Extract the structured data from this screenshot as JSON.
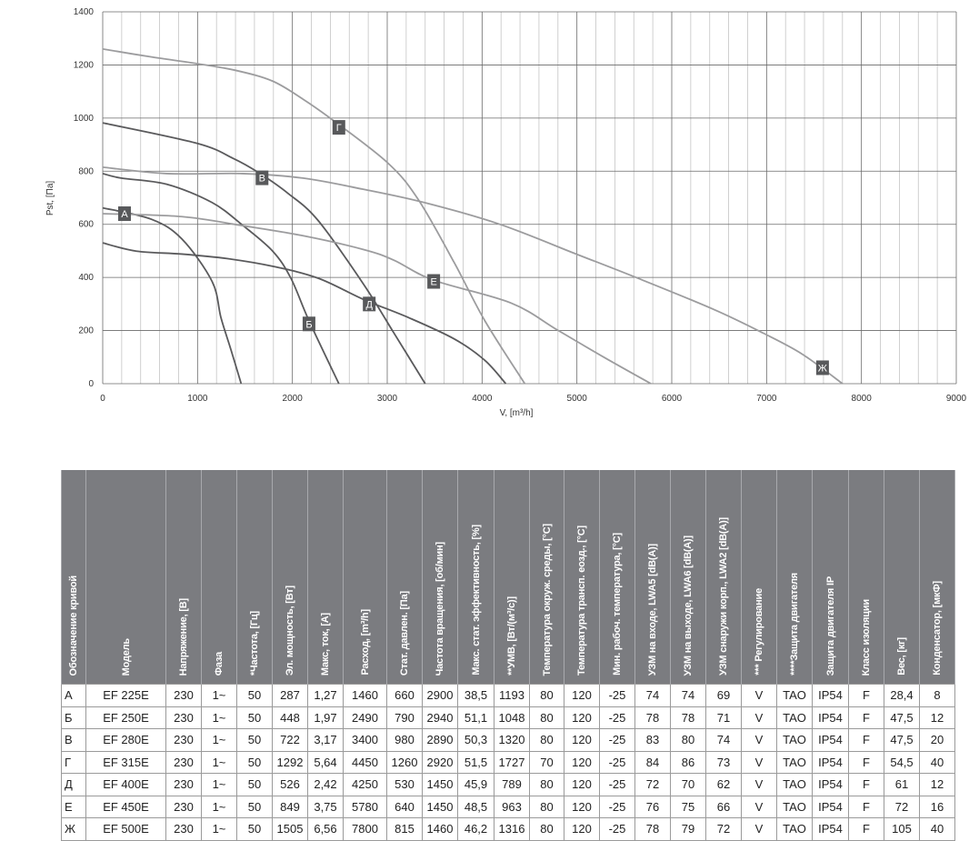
{
  "chart_data": {
    "type": "line",
    "xlabel": "V, [m³/h]",
    "ylabel": "Pst, [Па]",
    "xlim": [
      0,
      9000
    ],
    "ylim": [
      0,
      1400
    ],
    "xticks": [
      0,
      1000,
      2000,
      3000,
      4000,
      5000,
      6000,
      7000,
      8000,
      9000
    ],
    "yticks": [
      0,
      200,
      400,
      600,
      800,
      1000,
      1200,
      1400
    ],
    "grid": true,
    "colors": {
      "dark": "#5a5a5c",
      "light": "#9c9c9e",
      "label_box": "#58595b"
    },
    "series": [
      {
        "name": "А",
        "tone": "dark",
        "label_at": [
          230,
          640
        ],
        "points": [
          [
            0,
            662
          ],
          [
            514,
            619
          ],
          [
            834,
            545
          ],
          [
            1153,
            385
          ],
          [
            1247,
            248
          ],
          [
            1350,
            130
          ],
          [
            1460,
            0
          ]
        ]
      },
      {
        "name": "Б",
        "tone": "dark",
        "label_at": [
          2175,
          225
        ],
        "points": [
          [
            0,
            791
          ],
          [
            195,
            774
          ],
          [
            674,
            751
          ],
          [
            1153,
            682
          ],
          [
            1473,
            597
          ],
          [
            1792,
            499
          ],
          [
            1984,
            397
          ],
          [
            2175,
            237
          ],
          [
            2490,
            0
          ]
        ]
      },
      {
        "name": "В",
        "tone": "dark",
        "label_at": [
          1680,
          775
        ],
        "points": [
          [
            0,
            982
          ],
          [
            994,
            905
          ],
          [
            1377,
            848
          ],
          [
            1633,
            797
          ],
          [
            1952,
            717
          ],
          [
            2272,
            614
          ],
          [
            2751,
            374
          ],
          [
            3070,
            191
          ],
          [
            3400,
            0
          ]
        ]
      },
      {
        "name": "Г",
        "tone": "light",
        "label_at": [
          2490,
          965
        ],
        "points": [
          [
            0,
            1260
          ],
          [
            514,
            1230
          ],
          [
            994,
            1205
          ],
          [
            1409,
            1179
          ],
          [
            1792,
            1139
          ],
          [
            2112,
            1071
          ],
          [
            2431,
            991
          ],
          [
            3006,
            831
          ],
          [
            3326,
            694
          ],
          [
            3709,
            454
          ],
          [
            4029,
            237
          ],
          [
            4450,
            0
          ]
        ]
      },
      {
        "name": "Д",
        "tone": "dark",
        "label_at": [
          2810,
          300
        ],
        "points": [
          [
            0,
            530
          ],
          [
            355,
            499
          ],
          [
            834,
            488
          ],
          [
            1311,
            471
          ],
          [
            1792,
            442
          ],
          [
            2272,
            397
          ],
          [
            2751,
            317
          ],
          [
            3230,
            248
          ],
          [
            3709,
            168
          ],
          [
            4029,
            88
          ],
          [
            4250,
            0
          ]
        ]
      },
      {
        "name": "Е",
        "tone": "light",
        "label_at": [
          3490,
          385
        ],
        "points": [
          [
            0,
            640
          ],
          [
            834,
            629
          ],
          [
            1473,
            595
          ],
          [
            2112,
            557
          ],
          [
            2751,
            505
          ],
          [
            3070,
            465
          ],
          [
            3485,
            390
          ],
          [
            4303,
            304
          ],
          [
            4795,
            202
          ],
          [
            5287,
            99
          ],
          [
            5780,
            0
          ]
        ]
      },
      {
        "name": "Ж",
        "tone": "light",
        "label_at": [
          7590,
          60
        ],
        "points": [
          [
            0,
            815
          ],
          [
            674,
            791
          ],
          [
            1473,
            791
          ],
          [
            2112,
            774
          ],
          [
            2746,
            732
          ],
          [
            3390,
            682
          ],
          [
            4180,
            601
          ],
          [
            5000,
            487
          ],
          [
            5615,
            401
          ],
          [
            6434,
            281
          ],
          [
            6967,
            190
          ],
          [
            7377,
            111
          ],
          [
            7800,
            0
          ]
        ]
      }
    ]
  },
  "table": {
    "headers": [
      "Обозначение кривой",
      "Модель",
      "Напряжение, [В]",
      "Фаза",
      "*Частота, [Гц]",
      "Эл. мощность, [Вт]",
      "Макс, ток, [А]",
      "Расход, [m³/h]",
      "Стат. давлен. [Па]",
      "Частота вращения, [об/мин]",
      "Макс. стат. эффективность, [%]",
      "**УМВ, [Вт/(м³/с)]",
      "Температура окруж. среды, [°C]",
      "Температура трансп. еозд., [°C]",
      "Мин. рабоч. температура, [°C]",
      "УЗМ на входе, LWA5 [dB(A)]",
      "УЗМ на выходе, LWA6 [dB(A)]",
      "УЗМ снаружи корп., LWA2 [dB(A)]",
      "*** Регулирование",
      "****Защита двигателя",
      "Защита двигателя IP",
      "Класс изоляции",
      "Вес, [кг]",
      "Конденсатор, [мкФ]"
    ],
    "rows": [
      [
        "А",
        "EF 225E",
        "230",
        "1~",
        "50",
        "287",
        "1,27",
        "1460",
        "660",
        "2900",
        "38,5",
        "1193",
        "80",
        "120",
        "-25",
        "74",
        "74",
        "69",
        "V",
        "TAO",
        "IP54",
        "F",
        "28,4",
        "8"
      ],
      [
        "Б",
        "EF 250E",
        "230",
        "1~",
        "50",
        "448",
        "1,97",
        "2490",
        "790",
        "2940",
        "51,1",
        "1048",
        "80",
        "120",
        "-25",
        "78",
        "78",
        "71",
        "V",
        "TAO",
        "IP54",
        "F",
        "47,5",
        "12"
      ],
      [
        "В",
        "EF 280E",
        "230",
        "1~",
        "50",
        "722",
        "3,17",
        "3400",
        "980",
        "2890",
        "50,3",
        "1320",
        "80",
        "120",
        "-25",
        "83",
        "80",
        "74",
        "V",
        "TAO",
        "IP54",
        "F",
        "47,5",
        "20"
      ],
      [
        "Г",
        "EF 315E",
        "230",
        "1~",
        "50",
        "1292",
        "5,64",
        "4450",
        "1260",
        "2920",
        "51,5",
        "1727",
        "70",
        "120",
        "-25",
        "84",
        "86",
        "73",
        "V",
        "TAO",
        "IP54",
        "F",
        "54,5",
        "40"
      ],
      [
        "Д",
        "EF 400E",
        "230",
        "1~",
        "50",
        "526",
        "2,42",
        "4250",
        "530",
        "1450",
        "45,9",
        "789",
        "80",
        "120",
        "-25",
        "72",
        "70",
        "62",
        "V",
        "TAO",
        "IP54",
        "F",
        "61",
        "12"
      ],
      [
        "Е",
        "EF 450E",
        "230",
        "1~",
        "50",
        "849",
        "3,75",
        "5780",
        "640",
        "1450",
        "48,5",
        "963",
        "80",
        "120",
        "-25",
        "76",
        "75",
        "66",
        "V",
        "TAO",
        "IP54",
        "F",
        "72",
        "16"
      ],
      [
        "Ж",
        "EF 500E",
        "230",
        "1~",
        "50",
        "1505",
        "6,56",
        "7800",
        "815",
        "1460",
        "46,2",
        "1316",
        "80",
        "120",
        "-25",
        "78",
        "79",
        "72",
        "V",
        "TAO",
        "IP54",
        "F",
        "105",
        "40"
      ]
    ]
  }
}
